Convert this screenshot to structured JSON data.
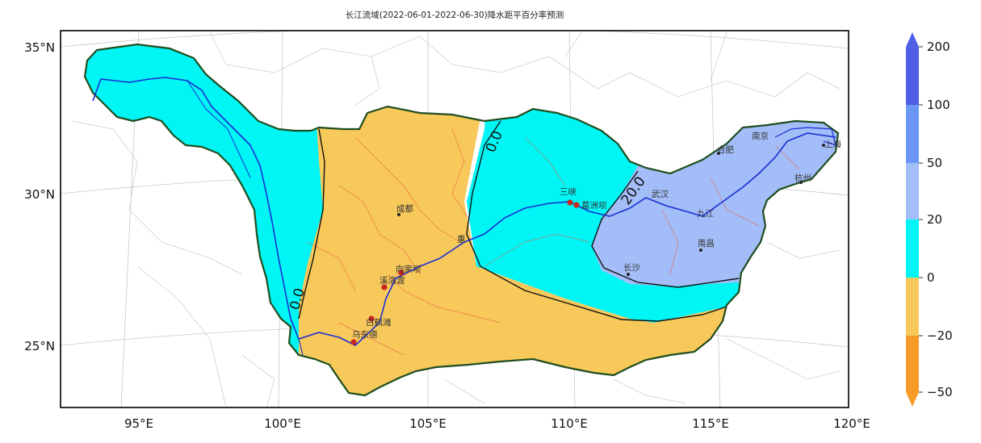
{
  "title": "长江流域(2022-06-01-2022-06-30)降水距平百分率预测",
  "lat_ticks": [
    "35°N",
    "30°N",
    "25°N"
  ],
  "lon_ticks": [
    "95°E",
    "100°E",
    "105°E",
    "110°E",
    "115°E",
    "120°E"
  ],
  "colorbar": {
    "tick_labels": [
      "200",
      "100",
      "50",
      "20",
      "0",
      "−20",
      "−50"
    ],
    "bins": [
      {
        "range": "100 to 200",
        "color": "#4f5fe6"
      },
      {
        "range": "50 to 100",
        "color": "#6a97f5"
      },
      {
        "range": "20 to 50",
        "color": "#a2bdf7"
      },
      {
        "range": "0 to 20",
        "color": "#00f5f5"
      },
      {
        "range": "-20 to 0",
        "color": "#f7c85a"
      },
      {
        "range": "-50 to -20",
        "color": "#f79b28"
      }
    ]
  },
  "contour_labels": [
    "0.0",
    "0.0",
    "20.0"
  ],
  "cities": [
    {
      "name": "成都"
    },
    {
      "name": "向家坝"
    },
    {
      "name": "溪洛渡"
    },
    {
      "name": "白鹤滩"
    },
    {
      "name": "乌东德"
    },
    {
      "name": "重"
    },
    {
      "name": "三峡"
    },
    {
      "name": "葛洲坝"
    },
    {
      "name": "武汉"
    },
    {
      "name": "长沙"
    },
    {
      "name": "南昌"
    },
    {
      "name": "合肥"
    },
    {
      "name": "南京"
    },
    {
      "name": "上海"
    },
    {
      "name": "杭州"
    },
    {
      "name": "九江"
    }
  ],
  "regions": [
    {
      "name": "upper-west",
      "color": "#00f5f5"
    },
    {
      "name": "sichuan-central",
      "color": "#f7c85a"
    },
    {
      "name": "middle",
      "color": "#00f5f5"
    },
    {
      "name": "lower-east",
      "color": "#a2bdf7"
    }
  ]
}
